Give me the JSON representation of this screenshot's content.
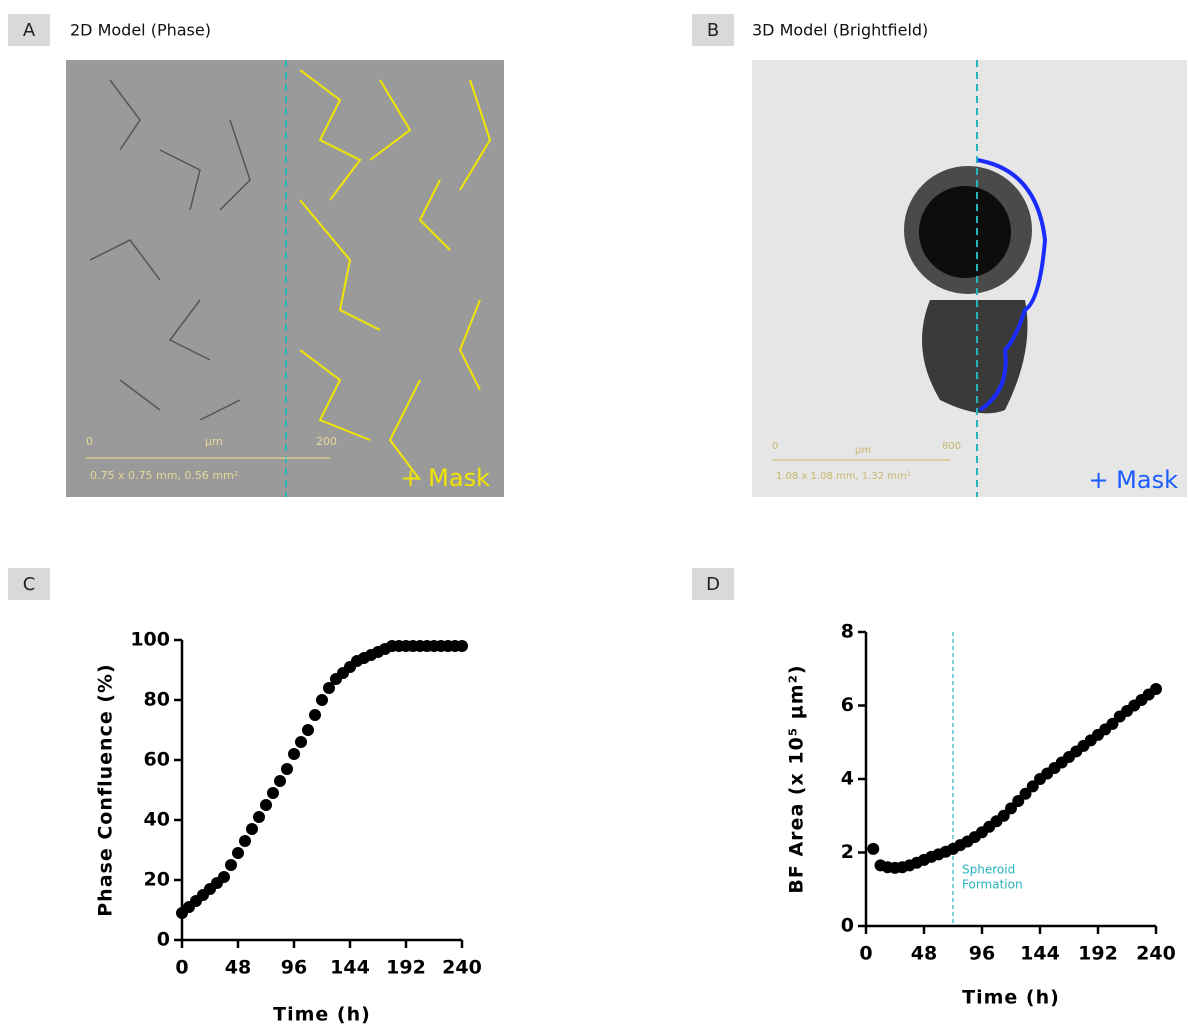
{
  "panels": [
    {
      "letter": "A",
      "title": "2D Model (Phase)",
      "scale_texts": [
        "0",
        "µm",
        "200",
        "0.75 x 0.75 mm, 0.56 mm²"
      ],
      "mask_label": "+ Mask"
    },
    {
      "letter": "B",
      "title": "3D Model (Brightfield)",
      "scale_texts": [
        "0",
        "µm",
        "800",
        "1.08 x 1.08 mm, 1.32 mm²"
      ],
      "mask_label": "+ Mask"
    }
  ],
  "chart_data": [
    {
      "type": "scatter",
      "panel": "C",
      "xlabel": "Time (h)",
      "ylabel": "Phase Confluence (%)",
      "x": [
        0,
        6,
        12,
        18,
        24,
        30,
        36,
        42,
        48,
        54,
        60,
        66,
        72,
        78,
        84,
        90,
        96,
        102,
        108,
        114,
        120,
        126,
        132,
        138,
        144,
        150,
        156,
        162,
        168,
        174,
        180,
        186,
        192,
        198,
        204,
        210,
        216,
        222,
        228,
        234,
        240
      ],
      "series": [
        {
          "color": "#000000",
          "values": [
            9,
            11,
            13,
            15,
            17,
            19,
            21,
            25,
            29,
            33,
            37,
            41,
            45,
            49,
            53,
            57,
            62,
            66,
            70,
            75,
            80,
            84,
            87,
            89,
            91,
            93,
            94,
            95,
            96,
            97,
            98,
            98,
            98,
            98,
            98,
            98,
            98,
            98,
            98,
            98,
            98
          ]
        }
      ],
      "xlim": [
        0,
        240
      ],
      "xticks": [
        0,
        48,
        96,
        144,
        192,
        240
      ],
      "ylim": [
        0,
        100
      ],
      "yticks": [
        0,
        20,
        40,
        60,
        80,
        100
      ]
    },
    {
      "type": "scatter",
      "panel": "D",
      "xlabel": "Time (h)",
      "ylabel": "BF Area (x 10⁵ µm²)",
      "x": [
        6,
        12,
        18,
        24,
        30,
        36,
        42,
        48,
        54,
        60,
        66,
        72,
        78,
        84,
        90,
        96,
        102,
        108,
        114,
        120,
        126,
        132,
        138,
        144,
        150,
        156,
        162,
        168,
        174,
        180,
        186,
        192,
        198,
        204,
        210,
        216,
        222,
        228,
        234,
        240
      ],
      "series": [
        {
          "color": "#000000",
          "values": [
            2.1,
            1.65,
            1.6,
            1.58,
            1.6,
            1.65,
            1.72,
            1.8,
            1.88,
            1.95,
            2.02,
            2.1,
            2.2,
            2.3,
            2.42,
            2.55,
            2.7,
            2.85,
            3.0,
            3.2,
            3.4,
            3.6,
            3.8,
            4.0,
            4.15,
            4.3,
            4.45,
            4.6,
            4.75,
            4.9,
            5.05,
            5.2,
            5.35,
            5.5,
            5.7,
            5.85,
            6.0,
            6.15,
            6.3,
            6.45
          ]
        }
      ],
      "xlim": [
        0,
        240
      ],
      "xticks": [
        0,
        48,
        96,
        144,
        192,
        240
      ],
      "ylim": [
        0,
        8
      ],
      "yticks": [
        0,
        2,
        4,
        6,
        8
      ],
      "annotation": {
        "x": 72,
        "lines": [
          "Spheroid",
          "Formation"
        ],
        "color": "#29b3bd"
      }
    }
  ]
}
